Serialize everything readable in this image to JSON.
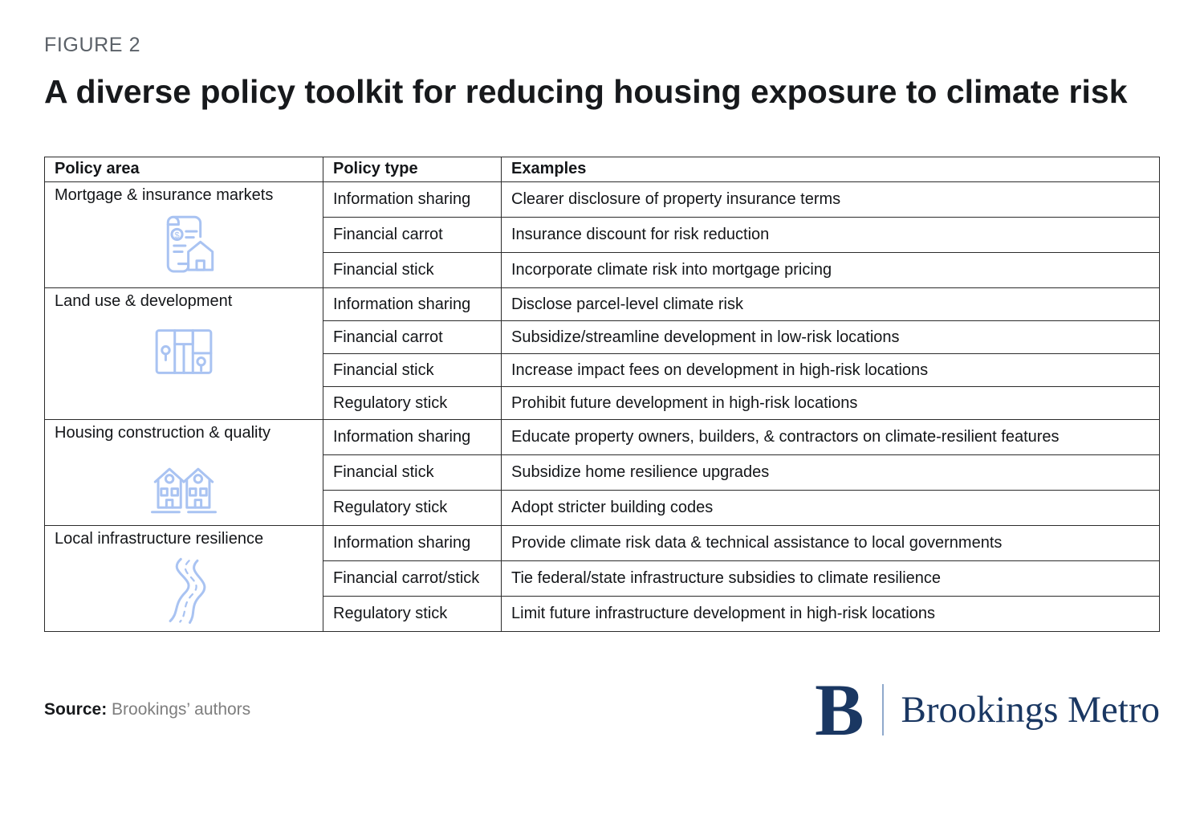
{
  "figure": {
    "label": "FIGURE 2",
    "title": "A diverse policy toolkit for reducing housing exposure to climate risk"
  },
  "chart_data": {
    "type": "table",
    "title": "A diverse policy toolkit for reducing housing exposure to climate risk",
    "columns": [
      "Policy area",
      "Policy type",
      "Examples"
    ],
    "groups": [
      {
        "area": "Mortgage & insurance markets",
        "icon": "mortgage-insurance-icon",
        "rows": [
          {
            "policy_type": "Information sharing",
            "example": "Clearer disclosure of property insurance terms"
          },
          {
            "policy_type": "Financial carrot",
            "example": "Insurance discount for risk reduction"
          },
          {
            "policy_type": "Financial stick",
            "example": "Incorporate climate risk into mortgage pricing"
          }
        ]
      },
      {
        "area": "Land use & development",
        "icon": "land-use-map-icon",
        "rows": [
          {
            "policy_type": "Information sharing",
            "example": "Disclose parcel-level climate risk"
          },
          {
            "policy_type": "Financial carrot",
            "example": "Subsidize/streamline development in low-risk locations"
          },
          {
            "policy_type": "Financial stick",
            "example": "Increase impact fees on development in high-risk locations"
          },
          {
            "policy_type": "Regulatory stick",
            "example": "Prohibit future development in high-risk locations"
          }
        ]
      },
      {
        "area": "Housing construction & quality",
        "icon": "housing-construction-icon",
        "rows": [
          {
            "policy_type": "Information sharing",
            "example": "Educate property owners, builders, & contractors on climate-resilient features"
          },
          {
            "policy_type": "Financial stick",
            "example": "Subsidize home resilience upgrades"
          },
          {
            "policy_type": "Regulatory stick",
            "example": "Adopt stricter building codes"
          }
        ]
      },
      {
        "area": "Local infrastructure resilience",
        "icon": "infrastructure-road-icon",
        "rows": [
          {
            "policy_type": "Information sharing",
            "example": "Provide climate risk data & technical assistance to local governments"
          },
          {
            "policy_type": "Financial carrot/stick",
            "example": "Tie federal/state infrastructure subsidies to climate resilience"
          },
          {
            "policy_type": "Regulatory stick",
            "example": "Limit future infrastructure development in high-risk locations"
          }
        ]
      }
    ]
  },
  "source": {
    "label": "Source:",
    "text": "Brookings’ authors"
  },
  "logo": {
    "letter": "B",
    "wordmark": "Brookings Metro"
  },
  "colors": {
    "icon_blue": "#a9c3f2",
    "brand_navy": "#1a3762",
    "text_dark": "#17191c",
    "figure_label_gray": "#5b6168",
    "source_gray": "#7e7e7e",
    "table_border": "#2b2b2b"
  }
}
